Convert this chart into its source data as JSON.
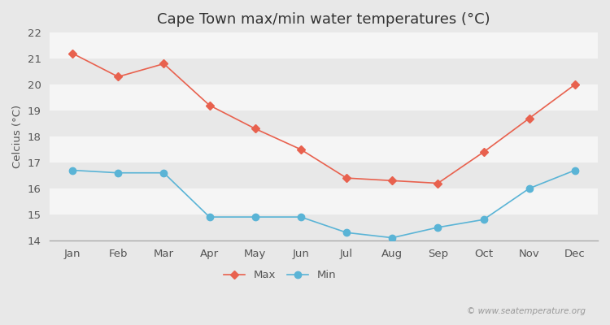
{
  "title": "Cape Town max/min water temperatures (°C)",
  "months": [
    "Jan",
    "Feb",
    "Mar",
    "Apr",
    "May",
    "Jun",
    "Jul",
    "Aug",
    "Sep",
    "Oct",
    "Nov",
    "Dec"
  ],
  "max_temps": [
    21.2,
    20.3,
    20.8,
    19.2,
    18.3,
    17.5,
    16.4,
    16.3,
    16.2,
    17.4,
    18.7,
    20.0
  ],
  "min_temps": [
    16.7,
    16.6,
    16.6,
    14.9,
    14.9,
    14.9,
    14.3,
    14.1,
    14.5,
    14.8,
    16.0,
    16.7
  ],
  "max_color": "#e8614e",
  "min_color": "#5ab4d6",
  "ylabel": "Celcius (°C)",
  "ylim": [
    14.0,
    22.0
  ],
  "yticks": [
    14,
    15,
    16,
    17,
    18,
    19,
    20,
    21,
    22
  ],
  "band_colors": [
    "#e8e8e8",
    "#f5f5f5"
  ],
  "background_color": "#e8e8e8",
  "watermark": "© www.seatemperature.org",
  "legend_max": "Max",
  "legend_min": "Min",
  "title_fontsize": 13,
  "label_fontsize": 9.5,
  "tick_fontsize": 9.5
}
